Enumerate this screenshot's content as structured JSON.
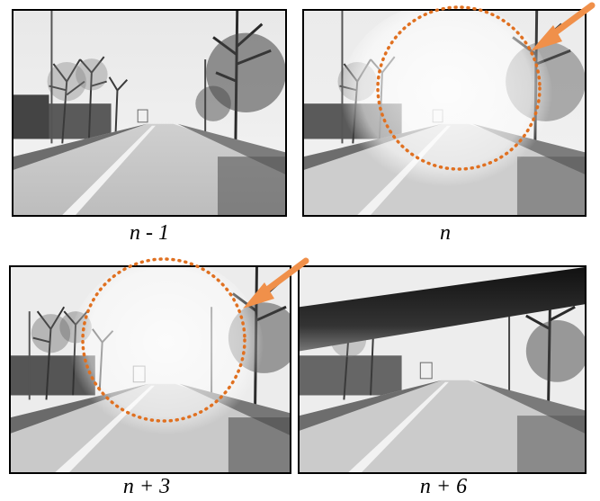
{
  "frames": [
    {
      "caption": "n - 1",
      "highlight_circle": false,
      "arrow": false,
      "wiper": false
    },
    {
      "caption": "n",
      "highlight_circle": true,
      "arrow": true,
      "wiper": false
    },
    {
      "caption": "n + 3",
      "highlight_circle": true,
      "arrow": true,
      "wiper": false
    },
    {
      "caption": "n + 6",
      "highlight_circle": false,
      "arrow": false,
      "wiper": true
    }
  ],
  "colors": {
    "circle": "#e07020",
    "arrow": "#f0904a",
    "border": "#000000"
  }
}
